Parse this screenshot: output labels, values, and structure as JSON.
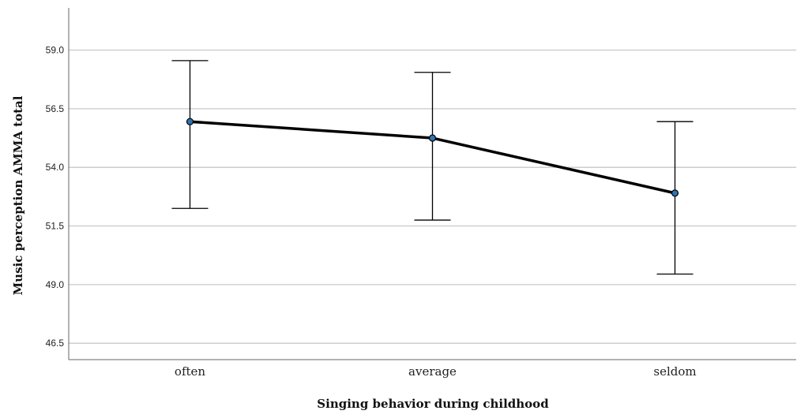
{
  "chart_data": {
    "type": "line",
    "categories": [
      "often",
      "average",
      "seldom"
    ],
    "series": [
      {
        "values": [
          55.95,
          55.25,
          52.9
        ],
        "error_low": [
          52.25,
          51.75,
          49.45
        ],
        "error_high": [
          58.55,
          58.05,
          55.95
        ]
      }
    ],
    "xlabel": "Singing behavior during childhood",
    "ylabel": "Music perception AMMA total",
    "ylim": [
      45.8,
      60.8
    ],
    "yticks": [
      46.5,
      49.0,
      51.5,
      54.0,
      56.5,
      59.0
    ],
    "ytick_labels": [
      "46.5",
      "49.0",
      "51.5",
      "54.0",
      "56.5",
      "59.0"
    ],
    "grid": true,
    "colors": {
      "line": "#000000",
      "marker_fill": "#2e74b5",
      "grid": "#c8c8c8",
      "axis": "#666666"
    }
  }
}
